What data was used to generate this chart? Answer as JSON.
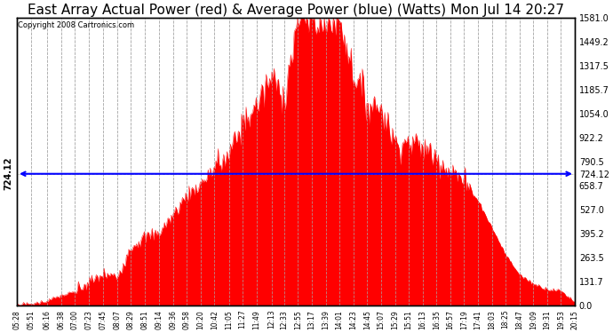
{
  "title": "East Array Actual Power (red) & Average Power (blue) (Watts) Mon Jul 14 20:27",
  "copyright": "Copyright 2008 Cartronics.com",
  "avg_power": 724.12,
  "y_max": 1581.0,
  "y_min": 0.0,
  "y_ticks_right": [
    0.0,
    131.7,
    263.5,
    395.2,
    527.0,
    658.7,
    790.5,
    922.2,
    1054.0,
    1185.7,
    1317.5,
    1449.2,
    1581.0
  ],
  "fill_color": "#FF0000",
  "line_color": "#0000FF",
  "bg_color": "#FFFFFF",
  "grid_color": "#AAAAAA",
  "title_fontsize": 11,
  "x_labels": [
    "05:28",
    "05:51",
    "06:16",
    "06:38",
    "07:00",
    "07:23",
    "07:45",
    "08:07",
    "08:29",
    "08:51",
    "09:14",
    "09:36",
    "09:58",
    "10:20",
    "10:42",
    "11:05",
    "11:27",
    "11:49",
    "12:13",
    "12:33",
    "12:55",
    "13:17",
    "13:39",
    "14:01",
    "14:23",
    "14:45",
    "15:07",
    "15:29",
    "15:51",
    "16:13",
    "16:35",
    "16:57",
    "17:19",
    "17:41",
    "18:03",
    "18:25",
    "18:47",
    "19:09",
    "19:31",
    "19:53",
    "20:15"
  ]
}
